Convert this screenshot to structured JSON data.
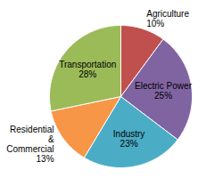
{
  "chart_data": {
    "type": "pie",
    "categories": [
      "Agriculture",
      "Electric Power",
      "Industry",
      "Residential & Commercial",
      "Transportation"
    ],
    "values": [
      10,
      25,
      23,
      13,
      28
    ],
    "value_labels": [
      "10%",
      "25%",
      "23%",
      "13%",
      "28%"
    ],
    "colors": [
      "#c0504d",
      "#8064a2",
      "#4bacc6",
      "#f79646",
      "#9bbb59"
    ],
    "data_labels": true
  }
}
